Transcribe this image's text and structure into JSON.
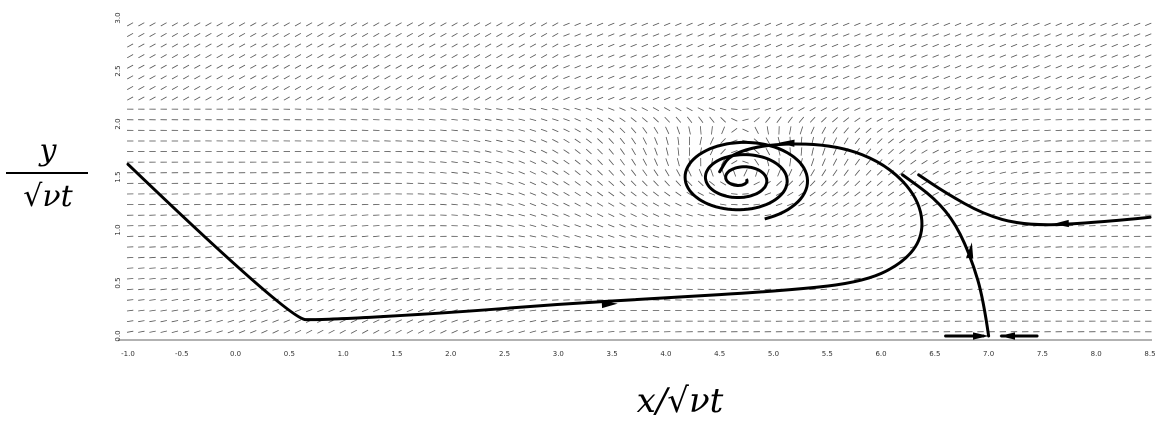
{
  "chart_data": {
    "type": "vector-field",
    "xlabel": "x/√νt",
    "ylabel": {
      "numerator": "y",
      "denominator": "√νt"
    },
    "xlim": [
      -1.0,
      8.5
    ],
    "ylim": [
      0.0,
      3.0
    ],
    "x_ticks": [
      "-1.0",
      "-0.5",
      "0.0",
      "0.5",
      "1.0",
      "1.5",
      "2.0",
      "2.5",
      "3.0",
      "3.5",
      "4.0",
      "4.5",
      "5.0",
      "5.5",
      "6.0",
      "6.5",
      "7.0",
      "7.5",
      "8.0",
      "8.5"
    ],
    "y_ticks": [
      "0.0",
      "0.5",
      "1.0",
      "1.5",
      "2.0",
      "2.5",
      "3.0"
    ],
    "colors": {
      "line": "#000000",
      "arrow_field": "#555555",
      "tick": "#333333"
    },
    "streamlines": [
      {
        "id": "separatrix-left",
        "points": [
          [
            -1.0,
            1.62
          ],
          [
            0.5,
            0.16
          ],
          [
            0.8,
            0.15
          ],
          [
            2.0,
            0.22
          ],
          [
            3.0,
            0.3
          ],
          [
            4.0,
            0.36
          ],
          [
            5.0,
            0.42
          ],
          [
            5.8,
            0.5
          ],
          [
            6.2,
            0.68
          ],
          [
            6.4,
            0.95
          ],
          [
            6.35,
            1.3
          ],
          [
            6.05,
            1.62
          ],
          [
            5.6,
            1.8
          ],
          [
            5.0,
            1.82
          ],
          [
            4.6,
            1.72
          ],
          [
            4.5,
            1.55
          ]
        ]
      },
      {
        "id": "right-dividing",
        "points": [
          [
            7.0,
            0.0
          ],
          [
            6.95,
            0.35
          ],
          [
            6.85,
            0.7
          ],
          [
            6.7,
            1.05
          ],
          [
            6.5,
            1.3
          ],
          [
            6.2,
            1.52
          ]
        ]
      },
      {
        "id": "right-inflow",
        "points": [
          [
            8.5,
            1.12
          ],
          [
            7.8,
            1.05
          ],
          [
            7.3,
            1.05
          ],
          [
            6.95,
            1.15
          ],
          [
            6.6,
            1.35
          ],
          [
            6.35,
            1.52
          ]
        ]
      },
      {
        "id": "wall-left",
        "points": [
          [
            6.6,
            0.0
          ],
          [
            6.95,
            0.0
          ]
        ]
      },
      {
        "id": "wall-right",
        "points": [
          [
            7.45,
            0.0
          ],
          [
            7.12,
            0.0
          ]
        ]
      }
    ],
    "vortex_center": [
      4.7,
      1.48
    ]
  }
}
